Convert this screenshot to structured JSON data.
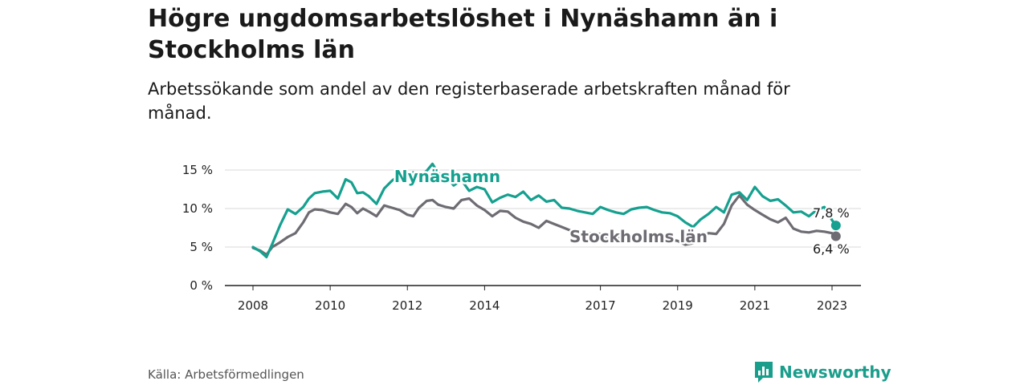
{
  "header": {
    "title": "Högre ungdomsarbetslöshet i Nynäshamn än i Stockholms län",
    "subtitle": "Arbetssökande som andel av den registerbaserade arbetskraften månad för månad."
  },
  "footer": {
    "source": "Källa: Arbetsförmedlingen",
    "brand": "Newsworthy"
  },
  "colors": {
    "teal": "#15a08f",
    "gray": "#6e6c72",
    "grid": "#d9d9d9"
  },
  "chart_data": {
    "type": "line",
    "ylim": [
      0,
      15
    ],
    "xlim": [
      2008,
      2023.3
    ],
    "y_ticks": [
      {
        "value": 0,
        "label": "0 %"
      },
      {
        "value": 5,
        "label": "5 %"
      },
      {
        "value": 10,
        "label": "10 %"
      },
      {
        "value": 15,
        "label": "15 %"
      }
    ],
    "x_ticks": [
      {
        "value": 2008,
        "label": "2008"
      },
      {
        "value": 2010,
        "label": "2010"
      },
      {
        "value": 2012,
        "label": "2012"
      },
      {
        "value": 2014,
        "label": "2014"
      },
      {
        "value": 2017,
        "label": "2017"
      },
      {
        "value": 2019,
        "label": "2019"
      },
      {
        "value": 2021,
        "label": "2021"
      },
      {
        "value": 2023,
        "label": "2023"
      }
    ],
    "series": [
      {
        "name": "Nynäshamn",
        "color": "#15a08f",
        "end_label": "7,8 %",
        "x": [
          2008.0,
          2008.2,
          2008.35,
          2008.5,
          2008.7,
          2008.9,
          2009.1,
          2009.3,
          2009.45,
          2009.6,
          2009.8,
          2010.0,
          2010.2,
          2010.4,
          2010.55,
          2010.7,
          2010.85,
          2011.0,
          2011.2,
          2011.4,
          2011.6,
          2011.8,
          2012.0,
          2012.15,
          2012.3,
          2012.5,
          2012.65,
          2012.8,
          2013.0,
          2013.2,
          2013.4,
          2013.6,
          2013.8,
          2014.0,
          2014.2,
          2014.4,
          2014.6,
          2014.8,
          2015.0,
          2015.2,
          2015.4,
          2015.6,
          2015.8,
          2016.0,
          2016.2,
          2016.4,
          2016.6,
          2016.8,
          2017.0,
          2017.2,
          2017.4,
          2017.6,
          2017.8,
          2018.0,
          2018.2,
          2018.4,
          2018.6,
          2018.8,
          2019.0,
          2019.2,
          2019.4,
          2019.6,
          2019.8,
          2020.0,
          2020.2,
          2020.4,
          2020.6,
          2020.8,
          2021.0,
          2021.2,
          2021.4,
          2021.6,
          2021.8,
          2022.0,
          2022.2,
          2022.4,
          2022.6,
          2022.8,
          2023.0,
          2023.1
        ],
        "values": [
          5.0,
          4.4,
          3.7,
          5.4,
          7.8,
          9.9,
          9.3,
          10.2,
          11.3,
          12.0,
          12.2,
          12.3,
          11.3,
          13.8,
          13.4,
          12.0,
          12.1,
          11.6,
          10.6,
          12.6,
          13.6,
          14.4,
          14.1,
          14.7,
          14.0,
          14.9,
          15.8,
          14.6,
          14.2,
          13.0,
          13.7,
          12.3,
          12.8,
          12.5,
          10.8,
          11.4,
          11.8,
          11.5,
          12.2,
          11.1,
          11.7,
          10.9,
          11.1,
          10.1,
          10.0,
          9.7,
          9.5,
          9.3,
          10.2,
          9.8,
          9.5,
          9.3,
          9.9,
          10.1,
          10.2,
          9.8,
          9.5,
          9.4,
          9.0,
          8.2,
          7.6,
          8.6,
          9.3,
          10.2,
          9.5,
          11.8,
          12.1,
          11.1,
          12.8,
          11.6,
          11.0,
          11.2,
          10.4,
          9.5,
          9.6,
          9.0,
          9.8,
          10.2,
          8.5,
          7.8
        ]
      },
      {
        "name": "Stockholms län",
        "color": "#6e6c72",
        "end_label": "6,4 %",
        "x": [
          2008.0,
          2008.2,
          2008.35,
          2008.5,
          2008.7,
          2008.9,
          2009.1,
          2009.3,
          2009.45,
          2009.6,
          2009.8,
          2010.0,
          2010.2,
          2010.4,
          2010.55,
          2010.7,
          2010.85,
          2011.0,
          2011.2,
          2011.4,
          2011.6,
          2011.8,
          2012.0,
          2012.15,
          2012.3,
          2012.5,
          2012.65,
          2012.8,
          2013.0,
          2013.2,
          2013.4,
          2013.6,
          2013.8,
          2014.0,
          2014.2,
          2014.4,
          2014.6,
          2014.8,
          2015.0,
          2015.2,
          2015.4,
          2015.6,
          2015.8,
          2016.0,
          2016.2,
          2016.4,
          2016.6,
          2016.8,
          2017.0,
          2017.2,
          2017.4,
          2017.6,
          2017.8,
          2018.0,
          2018.2,
          2018.4,
          2018.6,
          2018.8,
          2019.0,
          2019.2,
          2019.4,
          2019.6,
          2019.8,
          2020.0,
          2020.2,
          2020.4,
          2020.6,
          2020.8,
          2021.0,
          2021.2,
          2021.4,
          2021.6,
          2021.8,
          2022.0,
          2022.2,
          2022.4,
          2022.6,
          2022.8,
          2023.0,
          2023.1
        ],
        "values": [
          4.9,
          4.5,
          4.0,
          5.0,
          5.6,
          6.3,
          6.8,
          8.2,
          9.5,
          9.9,
          9.8,
          9.5,
          9.3,
          10.6,
          10.2,
          9.4,
          10.0,
          9.6,
          9.0,
          10.4,
          10.1,
          9.8,
          9.2,
          9.0,
          10.1,
          11.0,
          11.1,
          10.5,
          10.2,
          10.0,
          11.1,
          11.3,
          10.4,
          9.8,
          9.0,
          9.7,
          9.6,
          8.8,
          8.3,
          8.0,
          7.5,
          8.4,
          8.0,
          7.6,
          7.2,
          6.9,
          6.8,
          6.8,
          6.7,
          6.2,
          6.3,
          6.1,
          6.5,
          6.6,
          6.6,
          6.4,
          6.2,
          6.0,
          5.8,
          5.3,
          5.5,
          6.2,
          6.8,
          6.7,
          8.0,
          10.4,
          11.7,
          10.5,
          9.8,
          9.2,
          8.6,
          8.2,
          8.8,
          7.4,
          7.0,
          6.9,
          7.1,
          7.0,
          6.8,
          6.4
        ]
      }
    ]
  }
}
